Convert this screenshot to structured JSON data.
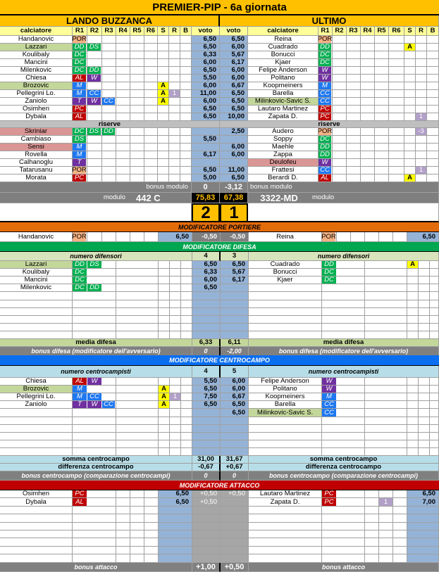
{
  "title": "PREMIER-PIP - 6a giornata",
  "colors": {
    "title_bg": "#ffc000",
    "header_bg": "#ffff99",
    "blue_col": "#95b3d7",
    "portiere": "#e26b0a",
    "difesa": "#00a650",
    "centrocampo": "#0a6ef0",
    "attacco": "#c00000",
    "hl_green": "#c4d79b",
    "hl_red": "#da9694",
    "yellow": "#ffff00",
    "r_badge": "#b1a0c7"
  },
  "role_colors": {
    "POR": "#f4b183",
    "DD": "#00b050",
    "DS": "#00b050",
    "DC": "#00b050",
    "M": "#1f78f0",
    "CC": "#1f78f0",
    "W": "#7030a0",
    "T": "#7030a0",
    "AL": "#c00000",
    "PC": "#c00000"
  },
  "header": {
    "calciatore": "calciatore",
    "r": [
      "R1",
      "R2",
      "R3",
      "R4",
      "R5",
      "R6"
    ],
    "s": "S",
    "rr": "R",
    "b": "B",
    "voto": "voto",
    "riserve": "riserve"
  },
  "home": {
    "name": "LANDO BUZZANCA",
    "bonus_modulo_label": "bonus modulo",
    "bonus_modulo": "0",
    "modulo_label": "modulo",
    "modulo": "442 C",
    "total": "75,83",
    "goals": "2",
    "starters": [
      {
        "name": "Handanovic",
        "roles": [
          "POR"
        ],
        "voto": "6,50"
      },
      {
        "name": "Lazzari",
        "roles": [
          "DD",
          "DS"
        ],
        "voto": "6,50",
        "hl": "green"
      },
      {
        "name": "Koulibaly",
        "roles": [
          "DC"
        ],
        "voto": "6,33"
      },
      {
        "name": "Mancini",
        "roles": [
          "DC"
        ],
        "voto": "6,00"
      },
      {
        "name": "Milenkovic",
        "roles": [
          "DC",
          "DD"
        ],
        "voto": "6,50"
      },
      {
        "name": "Chiesa",
        "roles": [
          "AL",
          "W"
        ],
        "voto": "5,50"
      },
      {
        "name": "Brozovic",
        "roles": [
          "M"
        ],
        "s": "A",
        "voto": "6,00",
        "hl": "green"
      },
      {
        "name": "Pellegrini Lo.",
        "roles": [
          "M",
          "CC"
        ],
        "s": "A",
        "r": "1",
        "voto": "11,00"
      },
      {
        "name": "Zaniolo",
        "roles": [
          "T",
          "W",
          "CC"
        ],
        "s": "A",
        "voto": "6,00"
      },
      {
        "name": "Osimhen",
        "roles": [
          "PC"
        ],
        "voto": "6,50"
      },
      {
        "name": "Dybala",
        "roles": [
          "AL"
        ],
        "voto": "6,50"
      }
    ],
    "reserves": [
      {
        "name": "Skriniar",
        "roles": [
          "DC",
          "DS",
          "DD"
        ],
        "hl": "red"
      },
      {
        "name": "Cambiaso",
        "roles": [
          "DS"
        ],
        "voto": "5,50"
      },
      {
        "name": "Sensi",
        "roles": [
          "M"
        ],
        "hl": "red"
      },
      {
        "name": "Rovella",
        "roles": [
          "M"
        ],
        "voto": "6,17"
      },
      {
        "name": "Calhanoglu",
        "roles": [
          "T"
        ]
      },
      {
        "name": "Tatarusanu",
        "roles": [
          "POR"
        ],
        "voto": "6,50"
      },
      {
        "name": "Morata",
        "roles": [
          "PC"
        ],
        "voto": "5,00"
      }
    ]
  },
  "away": {
    "name": "ULTIMO",
    "bonus_modulo_label": "bonus modulo",
    "bonus_modulo": "-3,12",
    "modulo_label": "modulo",
    "modulo": "3322-MD",
    "total": "67,38",
    "goals": "1",
    "starters": [
      {
        "name": "Reina",
        "roles": [
          "POR"
        ],
        "voto": "6,50"
      },
      {
        "name": "Cuadrado",
        "roles": [
          "DD"
        ],
        "s": "A",
        "voto": "6,00"
      },
      {
        "name": "Bonucci",
        "roles": [
          "DC"
        ],
        "voto": "5,67"
      },
      {
        "name": "Kjaer",
        "roles": [
          "DC"
        ],
        "voto": "6,17"
      },
      {
        "name": "Felipe Anderson",
        "roles": [
          "W"
        ],
        "voto": "6,00"
      },
      {
        "name": "Politano",
        "roles": [
          "W"
        ],
        "voto": "6,00"
      },
      {
        "name": "Koopmeiners",
        "roles": [
          "M"
        ],
        "voto": "6,67"
      },
      {
        "name": "Barella",
        "roles": [
          "CC"
        ],
        "voto": "6,50"
      },
      {
        "name": "Milinkovic-Savic S.",
        "roles": [
          "CC"
        ],
        "voto": "6,50",
        "hl": "green"
      },
      {
        "name": "Lautaro Martinez",
        "roles": [
          "PC"
        ],
        "voto": "6,50"
      },
      {
        "name": "Zapata D.",
        "roles": [
          "PC"
        ],
        "r": "1",
        "voto": "10,00"
      }
    ],
    "reserves": [
      {
        "name": "Audero",
        "roles": [
          "POR"
        ],
        "r": "-3",
        "voto": "2,50"
      },
      {
        "name": "Soppy",
        "roles": [
          "DC"
        ]
      },
      {
        "name": "Maehle",
        "roles": [
          "DD"
        ],
        "voto": "6,00"
      },
      {
        "name": "Zappa",
        "roles": [
          "DD"
        ],
        "voto": "6,00"
      },
      {
        "name": "Deulofeu",
        "roles": [
          "W"
        ],
        "hl": "red"
      },
      {
        "name": "Frattesi",
        "roles": [
          "CC"
        ],
        "r": "1",
        "voto": "11,00"
      },
      {
        "name": "Berardi D.",
        "roles": [
          "AL"
        ],
        "s": "A",
        "voto": "6,50"
      }
    ]
  },
  "portiere": {
    "title": "MODIFICATORE PORTIERE",
    "home": {
      "name": "Handanovic",
      "roles": [
        "POR"
      ],
      "voto": "6,50",
      "mod": "-0,50"
    },
    "away": {
      "name": "Reina",
      "roles": [
        "POR"
      ],
      "voto": "6,50",
      "mod": "-0,50"
    }
  },
  "difesa": {
    "title": "MODIFICATORE DIFESA",
    "count_label": "numero difensori",
    "home_count": "4",
    "away_count": "3",
    "home": [
      {
        "name": "Lazzari",
        "roles": [
          "DD",
          "DS"
        ],
        "voto": "6,50",
        "hl": "green"
      },
      {
        "name": "Koulibaly",
        "roles": [
          "DC"
        ],
        "voto": "6,33"
      },
      {
        "name": "Mancini",
        "roles": [
          "DC"
        ],
        "voto": "6,00"
      },
      {
        "name": "Milenkovic",
        "roles": [
          "DC",
          "DD"
        ],
        "voto": "6,50"
      }
    ],
    "away": [
      {
        "name": "Cuadrado",
        "roles": [
          "DD"
        ],
        "s": "A",
        "voto": "6,50"
      },
      {
        "name": "Bonucci",
        "roles": [
          "DC"
        ],
        "voto": "5,67"
      },
      {
        "name": "Kjaer",
        "roles": [
          "DC"
        ],
        "voto": "6,17"
      }
    ],
    "media_label": "media difesa",
    "home_media": "6,33",
    "away_media": "6,11",
    "bonus_label": "bonus difesa (modificatore dell'avversario)",
    "home_bonus": "0",
    "away_bonus": "-2,00"
  },
  "centrocampo": {
    "title": "MODIFICATORE CENTROCAMPO",
    "count_label": "numero centrocampisti",
    "home_count": "4",
    "away_count": "5",
    "home": [
      {
        "name": "Chiesa",
        "roles": [
          "AL",
          "W"
        ],
        "voto": "5,50"
      },
      {
        "name": "Brozovic",
        "roles": [
          "M"
        ],
        "s": "A",
        "voto": "6,50",
        "hl": "green"
      },
      {
        "name": "Pellegrini Lo.",
        "roles": [
          "M",
          "CC"
        ],
        "s": "A",
        "r": "1",
        "voto": "7,50"
      },
      {
        "name": "Zaniolo",
        "roles": [
          "T",
          "W",
          "CC"
        ],
        "s": "A",
        "voto": "6,50"
      }
    ],
    "away": [
      {
        "name": "Felipe Anderson",
        "roles": [
          "W"
        ],
        "voto": "6,00"
      },
      {
        "name": "Politano",
        "roles": [
          "W"
        ],
        "voto": "6,00"
      },
      {
        "name": "Koopmeiners",
        "roles": [
          "M"
        ],
        "voto": "6,67"
      },
      {
        "name": "Barella",
        "roles": [
          "CC"
        ],
        "voto": "6,50"
      },
      {
        "name": "Milinkovic-Savic S.",
        "roles": [
          "CC"
        ],
        "voto": "6,50",
        "hl": "green"
      }
    ],
    "somma_label": "somma centrocampo",
    "home_somma": "31,00",
    "away_somma": "31,67",
    "diff_label": "differenza centrocampo",
    "home_diff": "-0,67",
    "away_diff": "+0,67",
    "bonus_label": "bonus centrocampo (comparazione centrocampi)",
    "home_bonus": "0",
    "away_bonus": "0"
  },
  "attacco": {
    "title": "MODIFICATORE ATTACCO",
    "home": [
      {
        "name": "Osimhen",
        "roles": [
          "PC"
        ],
        "voto": "6,50",
        "bonus": "+0,50"
      },
      {
        "name": "Dybala",
        "roles": [
          "AL"
        ],
        "voto": "6,50",
        "bonus": "+0,50"
      }
    ],
    "away": [
      {
        "name": "Lautaro Martinez",
        "roles": [
          "PC"
        ],
        "voto": "6,50",
        "bonus": "+0,50"
      },
      {
        "name": "Zapata D.",
        "roles": [
          "PC"
        ],
        "r": "1",
        "voto": "7,00"
      }
    ],
    "bonus_label": "bonus attacco",
    "home_bonus": "+1,00",
    "away_bonus": "+0,50"
  }
}
